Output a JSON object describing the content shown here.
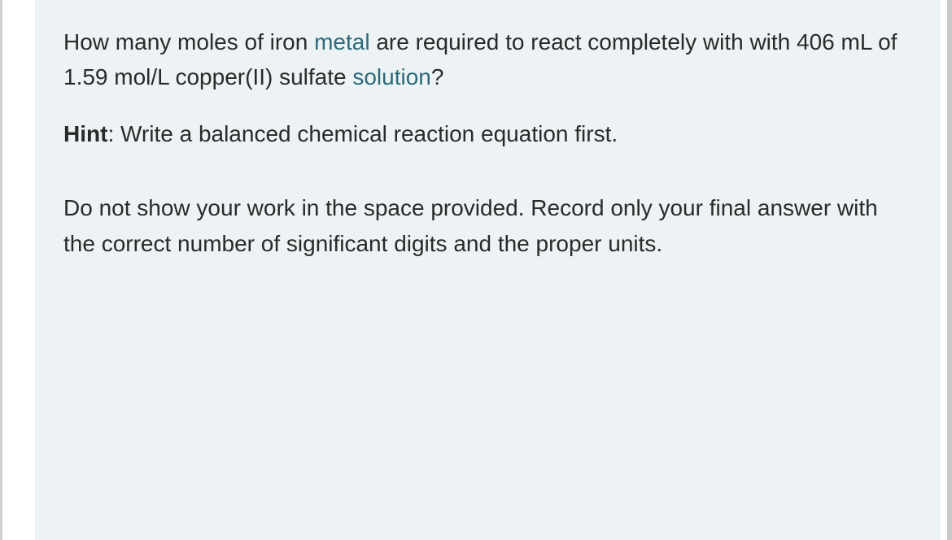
{
  "question": {
    "part1": "How many moles of iron ",
    "link1": "metal",
    "part2": " are required to react completely with with 406 mL of 1.59 mol/L copper(II) sulfate ",
    "link2": "solution",
    "part3": "?"
  },
  "hint": {
    "label": "Hint",
    "text": ": Write a balanced chemical reaction equation first."
  },
  "instruction": "Do not show your work in the space provided. Record only your final answer with the correct number of significant digits and the proper units.",
  "colors": {
    "background": "#edf3f4",
    "text": "#2a2a2a",
    "link": "#2b6a7a",
    "border": "#c8c8c8"
  },
  "typography": {
    "fontsize": 28,
    "lineheight": 1.55,
    "family": "Verdana"
  }
}
